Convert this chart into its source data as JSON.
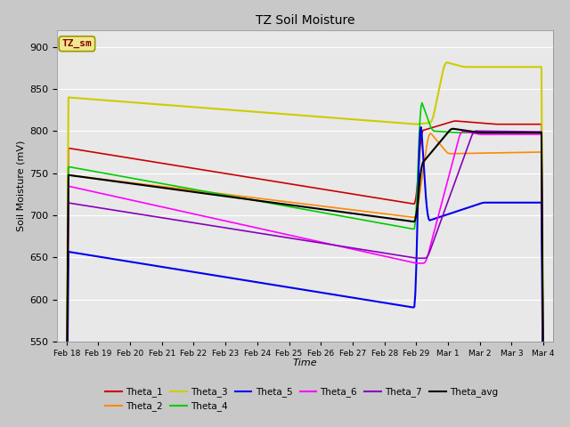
{
  "title": "TZ Soil Moisture",
  "xlabel": "Time",
  "ylabel": "Soil Moisture (mV)",
  "ylim": [
    550,
    920
  ],
  "yticks": [
    550,
    600,
    650,
    700,
    750,
    800,
    850,
    900
  ],
  "fig_bg": "#c8c8c8",
  "plot_bg": "#e8e8e8",
  "grid_color": "#ffffff",
  "legend_label": "TZ_sm",
  "legend_bg": "#f0e890",
  "legend_edge": "#999900",
  "legend_text_color": "#880000",
  "colors": {
    "Theta_1": "#cc0000",
    "Theta_2": "#ff8800",
    "Theta_3": "#cccc00",
    "Theta_4": "#00cc00",
    "Theta_5": "#0000ee",
    "Theta_6": "#ff00ff",
    "Theta_7": "#8800bb",
    "Theta_avg": "#000000"
  },
  "tick_labels": [
    "Feb 18",
    "Feb 19",
    "Feb 20",
    "Feb 21",
    "Feb 22",
    "Feb 23",
    "Feb 24",
    "Feb 25",
    "Feb 26",
    "Feb 27",
    "Feb 28",
    "Feb 29",
    "Mar 1",
    "Mar 2",
    "Mar 3",
    "Mar 4"
  ]
}
